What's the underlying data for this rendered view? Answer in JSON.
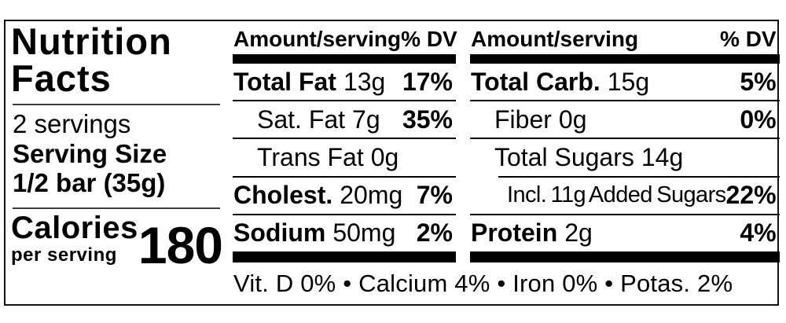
{
  "left": {
    "title": "Nutrition Facts",
    "servings": "2 servings",
    "serving_size_label": "Serving Size",
    "serving_size_value": "1/2 bar (35g)",
    "calories_label": "Calories",
    "calories_sub": "per serving",
    "calories_value": "180"
  },
  "columns": [
    {
      "header_amount": "Amount/serving",
      "header_dv": "% DV",
      "rows": [
        {
          "name": "Total Fat",
          "amount": "13g",
          "dv": "17%"
        },
        {
          "name": "Sat. Fat",
          "amount": "7g",
          "dv": "35%"
        },
        {
          "name": "Trans Fat",
          "amount": "0g",
          "dv": ""
        },
        {
          "name": "Cholest.",
          "amount": "20mg",
          "dv": "7%"
        },
        {
          "name": "Sodium",
          "amount": "50mg",
          "dv": "2%"
        }
      ]
    },
    {
      "header_amount": "Amount/serving",
      "header_dv": "% DV",
      "rows": [
        {
          "name": "Total Carb.",
          "amount": "15g",
          "dv": "5%"
        },
        {
          "name": "Fiber",
          "amount": "0g",
          "dv": "0%"
        },
        {
          "name": "Total Sugars",
          "amount": "14g",
          "dv": ""
        },
        {
          "name": "Incl. 11g Added Sugars",
          "amount": "",
          "dv": "22%"
        },
        {
          "name": "Protein",
          "amount": "2g",
          "dv": "4%"
        }
      ]
    }
  ],
  "footer": "Vit. D 0% • Calcium 4% • Iron 0% • Potas. 2%",
  "colors": {
    "ink": "#000000",
    "background": "#ffffff"
  }
}
